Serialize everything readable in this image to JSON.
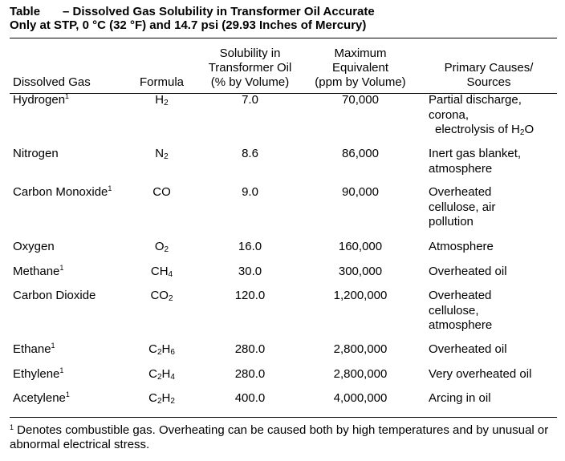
{
  "title": {
    "label": "Table",
    "line1": "– Dissolved Gas Solubility in Transformer Oil Accurate",
    "line2": "Only at STP, 0 °C (32 °F) and 14.7 psi (29.93 Inches of Mercury)"
  },
  "headers": {
    "gas": "Dissolved Gas",
    "formula": "Formula",
    "solubility": [
      "Solubility in",
      "Transformer Oil",
      "(% by Volume)"
    ],
    "max": [
      "Maximum",
      "Equivalent",
      "(ppm by Volume)"
    ],
    "causes": [
      "Primary Causes/",
      "Sources"
    ]
  },
  "rows": [
    {
      "gas": "Hydrogen",
      "sup": "1",
      "f": [
        "H",
        "2"
      ],
      "sol": "7.0",
      "max": "70,000",
      "causes": [
        "Partial discharge,",
        "corona,"
      ],
      "causes_extra": [
        "electrolysis of H",
        "2",
        "O"
      ]
    },
    {
      "gas": "Nitrogen",
      "sup": "",
      "f": [
        "N",
        "2"
      ],
      "sol": "8.6",
      "max": "86,000",
      "causes": [
        "Inert gas blanket,",
        "atmosphere"
      ]
    },
    {
      "gas": "Carbon Monoxide",
      "sup": "1",
      "f": [
        "CO"
      ],
      "sol": "9.0",
      "max": "90,000",
      "causes": [
        "Overheated",
        "cellulose, air",
        "pollution"
      ]
    },
    {
      "gas": "Oxygen",
      "sup": "",
      "f": [
        "O",
        "2"
      ],
      "sol": "16.0",
      "max": "160,000",
      "causes": [
        "Atmosphere"
      ]
    },
    {
      "gas": "Methane",
      "sup": "1",
      "f": [
        "CH",
        "4"
      ],
      "sol": "30.0",
      "max": "300,000",
      "causes": [
        "Overheated oil"
      ]
    },
    {
      "gas": "Carbon Dioxide",
      "sup": "",
      "f": [
        "CO",
        "2"
      ],
      "sol": "120.0",
      "max": "1,200,000",
      "causes": [
        "Overheated",
        "cellulose,",
        "atmosphere"
      ]
    },
    {
      "gas": "Ethane",
      "sup": "1",
      "f": [
        "C",
        "2",
        "H",
        "6"
      ],
      "sol": "280.0",
      "max": "2,800,000",
      "causes": [
        "Overheated oil"
      ]
    },
    {
      "gas": "Ethylene",
      "sup": "1",
      "f": [
        "C",
        "2",
        "H",
        "4"
      ],
      "sol": "280.0",
      "max": "2,800,000",
      "causes": [
        "Very overheated oil"
      ]
    },
    {
      "gas": "Acetylene",
      "sup": "1",
      "f": [
        "C",
        "2",
        "H",
        "2"
      ],
      "sol": "400.0",
      "max": "4,000,000",
      "causes": [
        "Arcing in oil"
      ]
    }
  ],
  "footnote": {
    "mark": "1",
    "text": " Denotes combustible gas.  Overheating can be caused both by high temperatures and by unusual or abnormal electrical stress."
  }
}
